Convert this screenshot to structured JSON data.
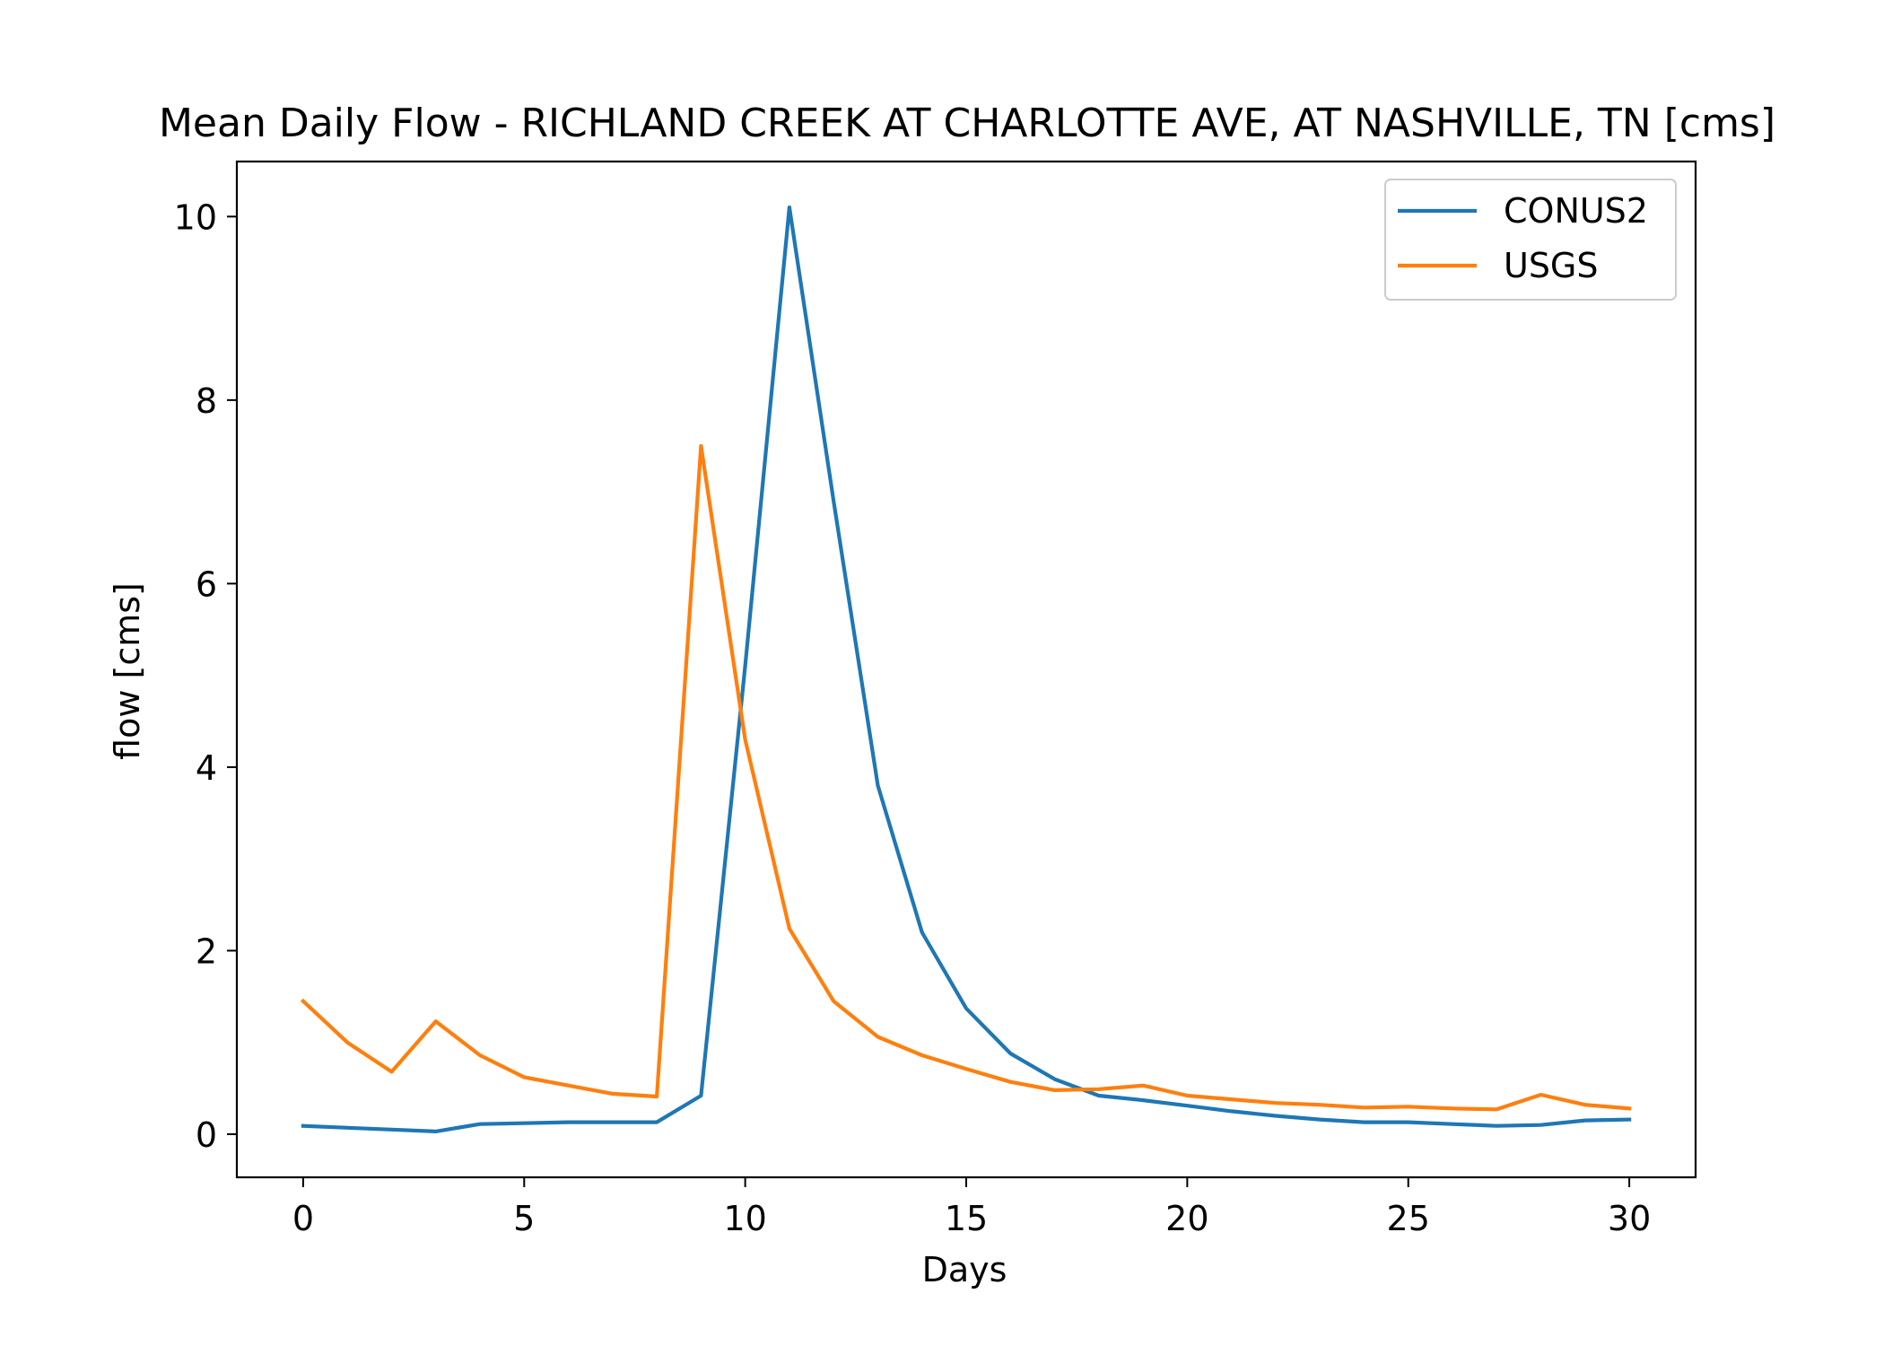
{
  "chart_data": {
    "type": "line",
    "title": "Mean Daily Flow - RICHLAND CREEK AT CHARLOTTE AVE, AT NASHVILLE, TN [cms]",
    "xlabel": "Days",
    "ylabel": "flow [cms]",
    "xlim": [
      -1.5,
      31.5
    ],
    "ylim": [
      -0.47,
      10.6
    ],
    "xticks": [
      0,
      5,
      10,
      15,
      20,
      25,
      30
    ],
    "yticks": [
      0,
      2,
      4,
      6,
      8,
      10
    ],
    "grid": false,
    "legend": "top-right",
    "x": [
      0,
      1,
      2,
      3,
      4,
      5,
      6,
      7,
      8,
      9,
      10,
      11,
      12,
      13,
      14,
      15,
      16,
      17,
      18,
      19,
      20,
      21,
      22,
      23,
      24,
      25,
      26,
      27,
      28,
      29,
      30
    ],
    "series": [
      {
        "name": "CONUS2",
        "color": "#1f77b4",
        "values": [
          0.09,
          0.07,
          0.05,
          0.03,
          0.11,
          0.12,
          0.13,
          0.13,
          0.13,
          0.42,
          5.1,
          10.1,
          6.9,
          3.8,
          2.2,
          1.37,
          0.88,
          0.6,
          0.42,
          0.37,
          0.31,
          0.25,
          0.2,
          0.16,
          0.13,
          0.13,
          0.11,
          0.09,
          0.1,
          0.15,
          0.16
        ]
      },
      {
        "name": "USGS",
        "color": "#ff7f0e",
        "values": [
          1.45,
          1.0,
          0.68,
          1.23,
          0.86,
          0.62,
          0.53,
          0.44,
          0.41,
          7.5,
          4.3,
          2.24,
          1.45,
          1.06,
          0.86,
          0.71,
          0.57,
          0.48,
          0.49,
          0.53,
          0.42,
          0.38,
          0.34,
          0.32,
          0.29,
          0.3,
          0.28,
          0.27,
          0.43,
          0.32,
          0.28
        ]
      }
    ]
  }
}
